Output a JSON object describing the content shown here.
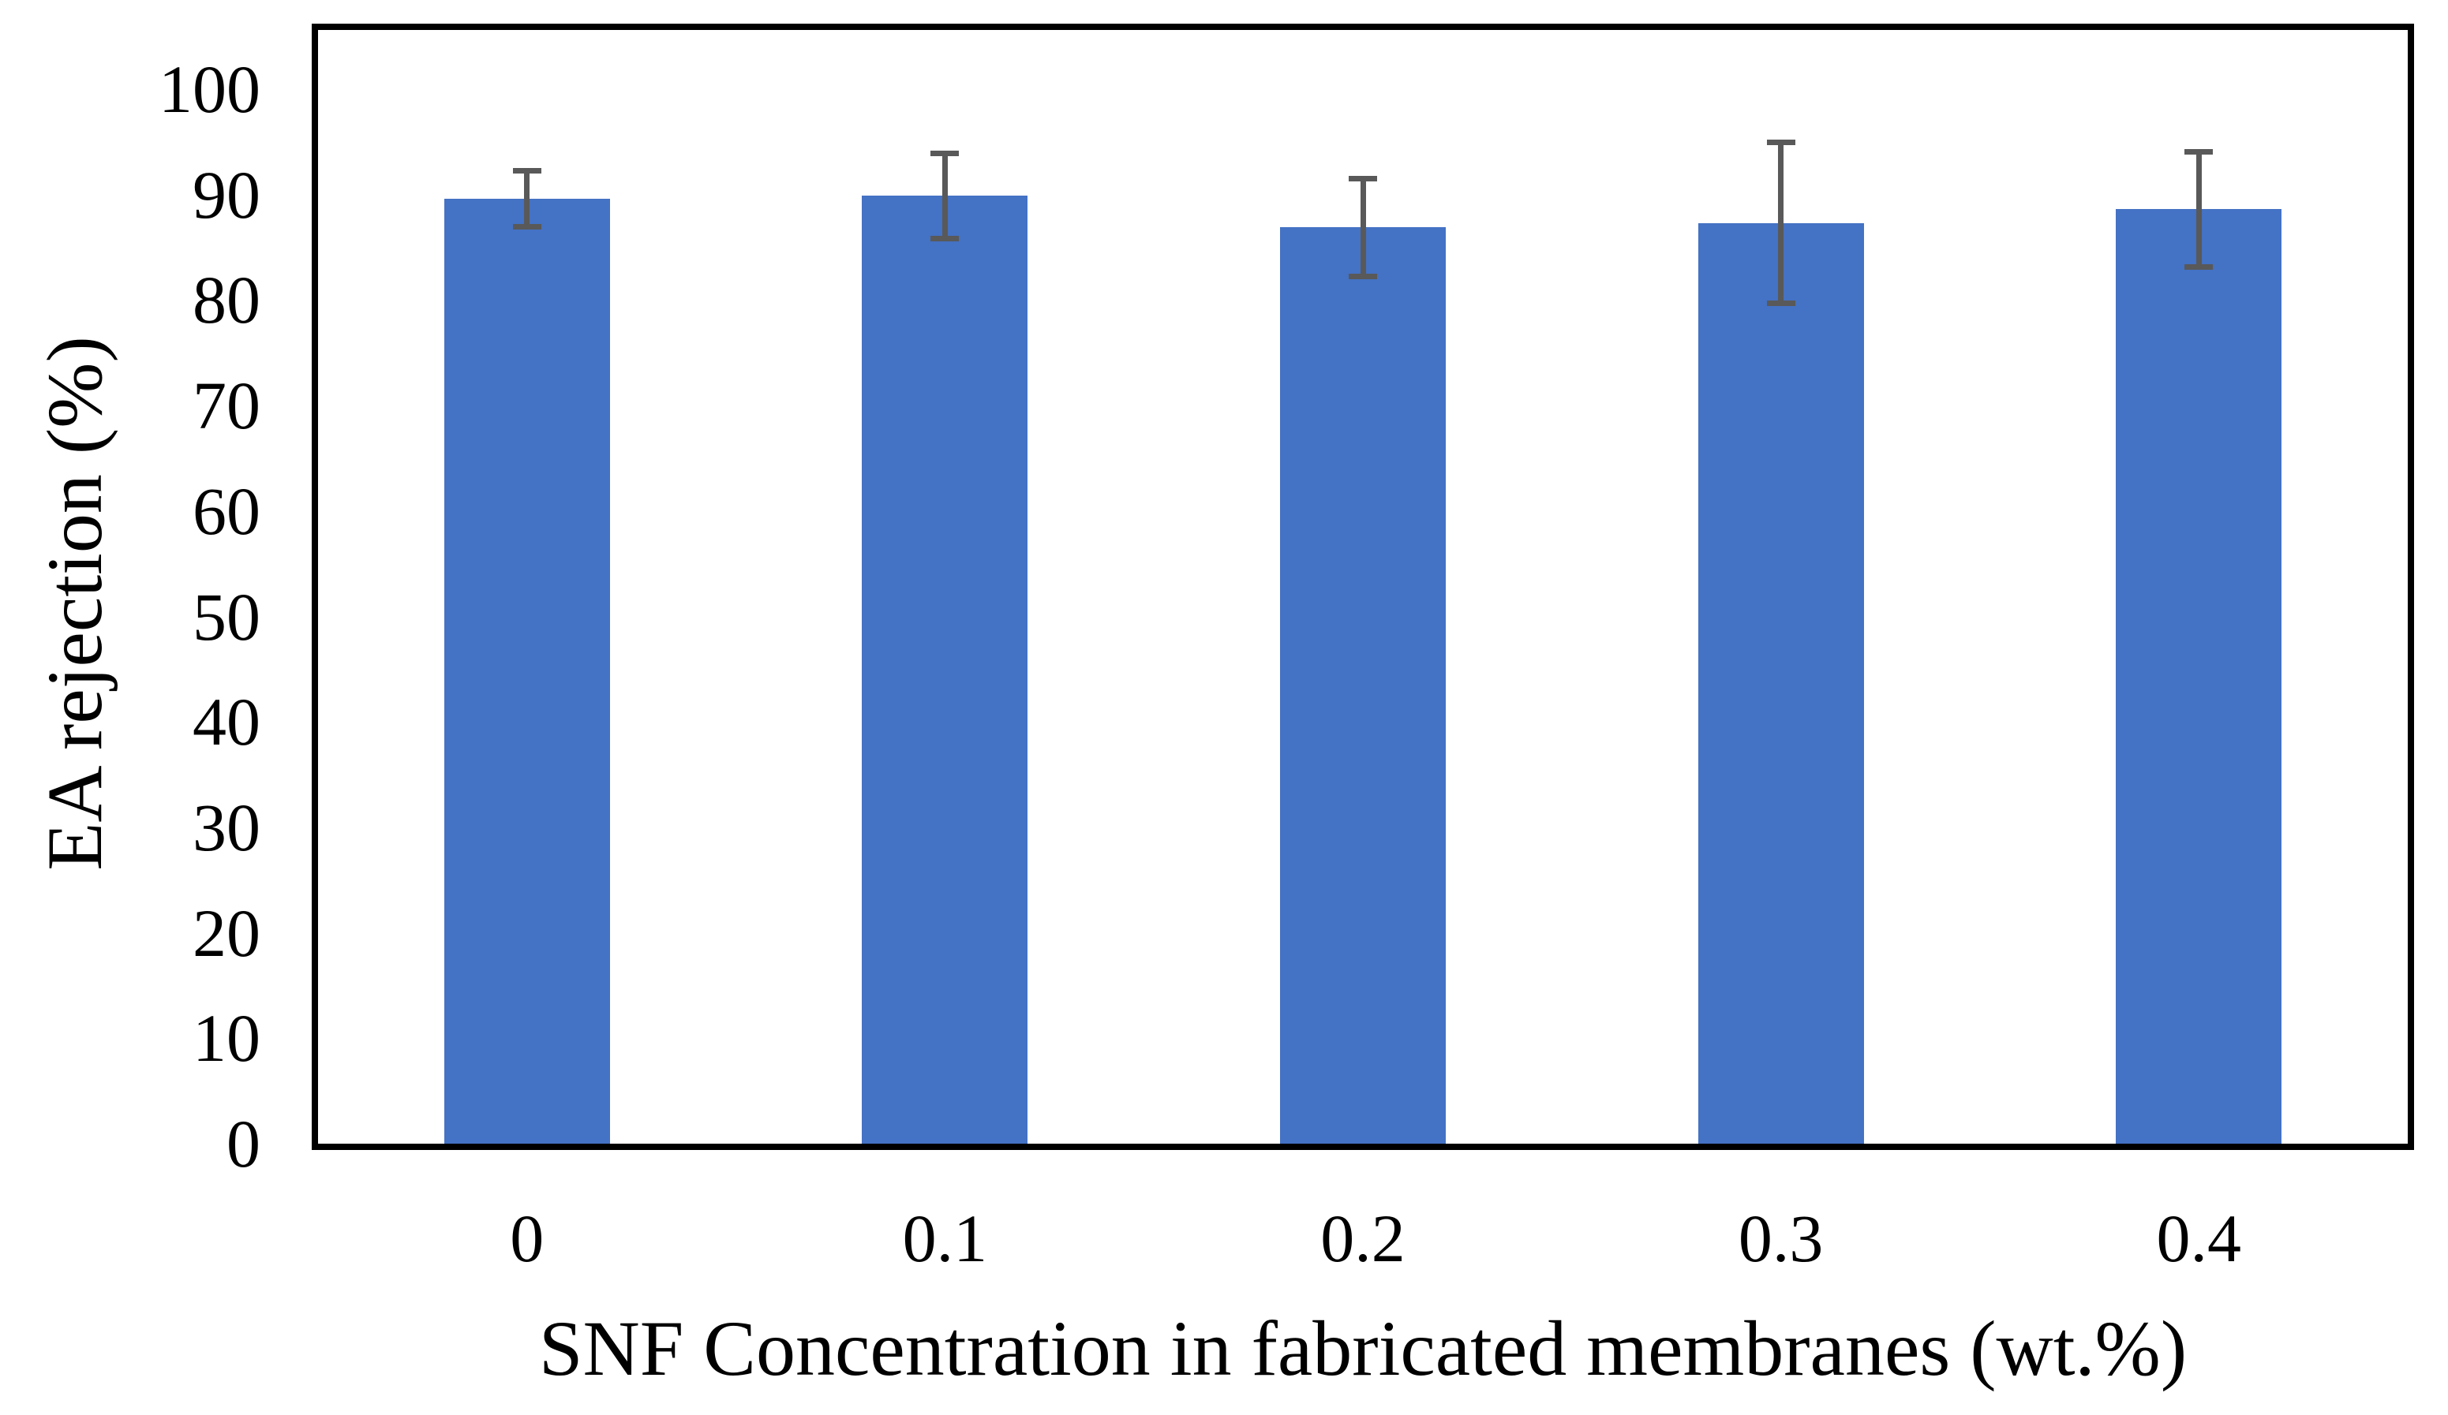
{
  "chart_data": {
    "type": "bar",
    "title": "",
    "xlabel": "SNF Concentration in fabricated membranes (wt.%)",
    "ylabel": "EA rejection (%)",
    "categories": [
      "0",
      "0.1",
      "0.2",
      "0.3",
      "0.4"
    ],
    "series": [
      {
        "name": "EA rejection (%)",
        "values": [
          89.6,
          89.9,
          86.9,
          87.3,
          88.6
        ],
        "error_bars": [
          2.9,
          4.3,
          4.9,
          7.9,
          5.7
        ]
      }
    ],
    "ylim": [
      0,
      100
    ],
    "y_ticks": [
      0,
      10,
      20,
      30,
      40,
      50,
      60,
      70,
      80,
      90,
      100
    ],
    "grid": false,
    "legend": false,
    "layout_hints": {
      "bar_gap": "bars occupy ~40% of each category slot",
      "error_bars_visible": true,
      "plot_border": "full black rectangle, no tick marks, no gridlines"
    },
    "colors": {
      "bar": "#4472C4",
      "error_bar": "#595959",
      "axis_border": "#000000",
      "text": "#000000",
      "background": "#FFFFFF"
    }
  }
}
